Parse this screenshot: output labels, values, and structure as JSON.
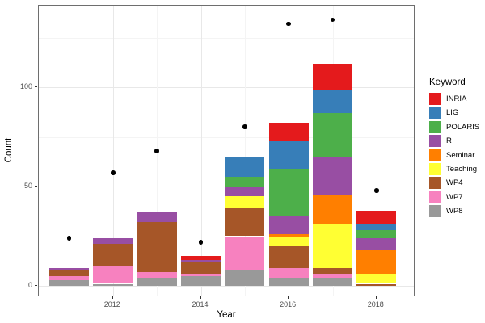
{
  "chart_data": {
    "type": "bar",
    "stacked": true,
    "title": "",
    "xlabel": "Year",
    "ylabel": "Count",
    "legend_title": "Keyword",
    "legend_position": "right",
    "grid": true,
    "categories": [
      2011,
      2012,
      2013,
      2014,
      2015,
      2016,
      2017,
      2018
    ],
    "x_tick_years": [
      2012,
      2014,
      2016,
      2018
    ],
    "x_tick_labels": [
      "2012",
      "2014",
      "2016",
      "2018"
    ],
    "y_ticks": [
      0,
      50,
      100
    ],
    "y_tick_labels": [
      "0",
      "50",
      "100"
    ],
    "y_minor_ticks": [
      25,
      75,
      125
    ],
    "ylim": [
      -5,
      141
    ],
    "series": [
      {
        "name": "INRIA",
        "color": "#E41A1C",
        "values": [
          0,
          0,
          0,
          2,
          0,
          9,
          13,
          7
        ]
      },
      {
        "name": "LIG",
        "color": "#377EB8",
        "values": [
          0,
          0,
          0,
          0,
          10,
          14,
          12,
          3
        ]
      },
      {
        "name": "POLARIS",
        "color": "#4DAF4A",
        "values": [
          0,
          0,
          0,
          0,
          5,
          24,
          22,
          4
        ]
      },
      {
        "name": "R",
        "color": "#984EA3",
        "values": [
          1,
          3,
          5,
          1,
          5,
          9,
          19,
          6
        ]
      },
      {
        "name": "Seminar",
        "color": "#FF7F00",
        "values": [
          0,
          0,
          0,
          0,
          0,
          1,
          15,
          12
        ]
      },
      {
        "name": "Teaching",
        "color": "#FFFF33",
        "values": [
          0,
          0,
          0,
          0,
          6,
          5,
          22,
          5
        ]
      },
      {
        "name": "WP4",
        "color": "#A65628",
        "values": [
          3,
          11,
          25,
          6,
          14,
          11,
          3,
          1
        ]
      },
      {
        "name": "WP7",
        "color": "#F781BF",
        "values": [
          2,
          9,
          3,
          1,
          17,
          5,
          2,
          0
        ]
      },
      {
        "name": "WP8",
        "color": "#999999",
        "values": [
          3,
          1,
          4,
          5,
          8,
          4,
          4,
          0
        ]
      }
    ],
    "stack_order_bottom_to_top": [
      "WP8",
      "WP7",
      "WP4",
      "Teaching",
      "Seminar",
      "R",
      "POLARIS",
      "LIG",
      "INRIA"
    ],
    "points": {
      "name": "yearly-total-dots",
      "color": "#000000",
      "values": [
        24,
        57,
        68,
        22,
        80,
        132,
        134,
        48
      ]
    },
    "bar_totals": [
      9,
      24,
      37,
      15,
      65,
      82,
      112,
      38
    ]
  }
}
